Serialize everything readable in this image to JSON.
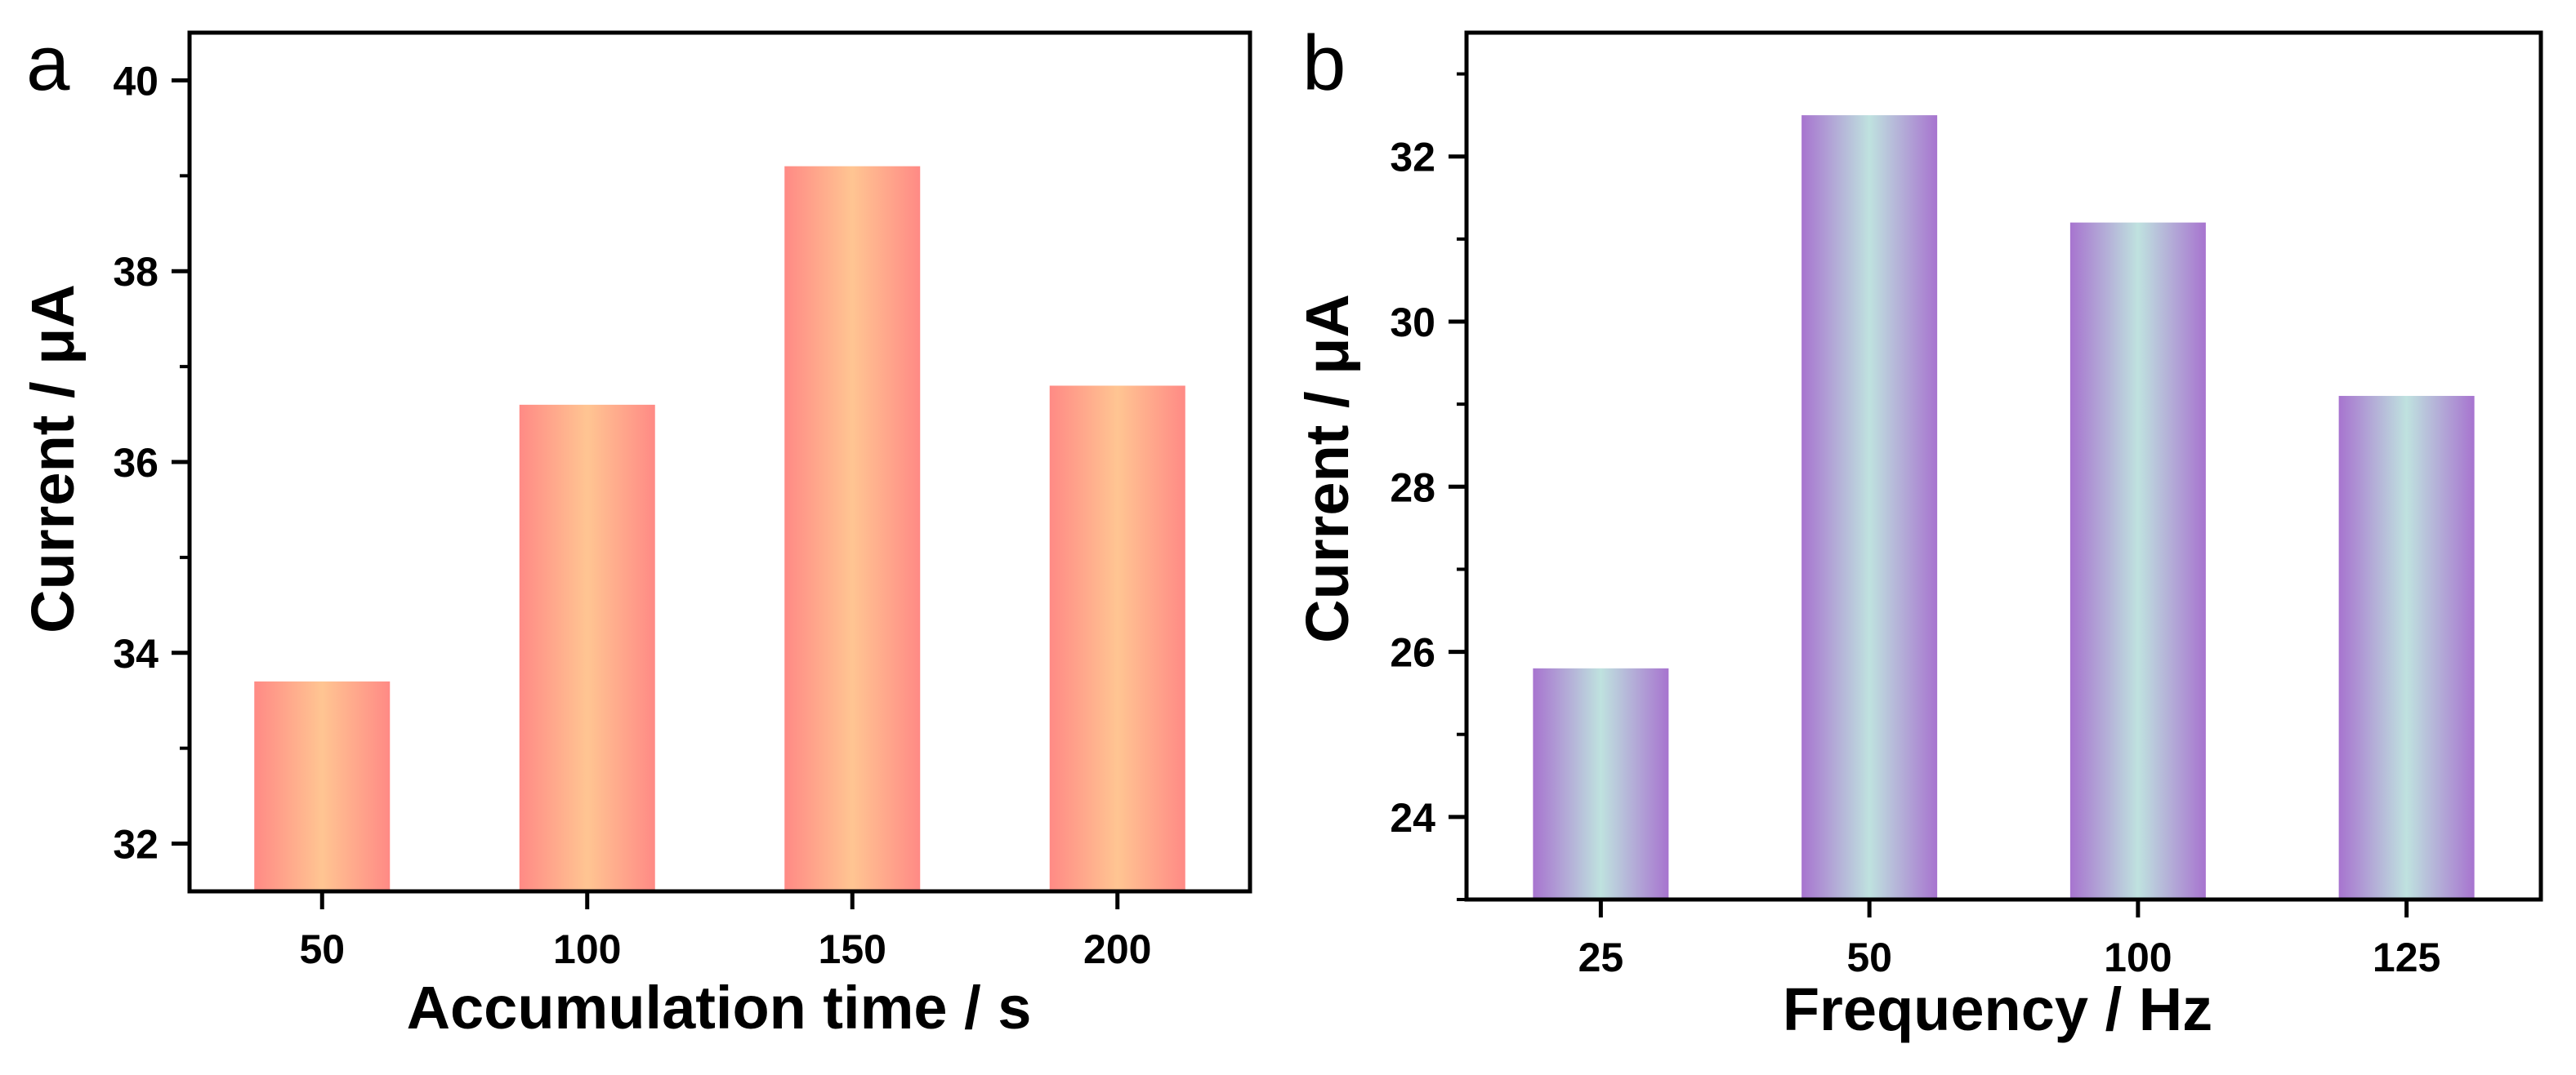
{
  "chart_data": [
    {
      "type": "bar",
      "panel_label": "a",
      "title": "",
      "xlabel": "Accumulation time / s",
      "ylabel": "Current / μA",
      "categories": [
        "50",
        "100",
        "150",
        "200"
      ],
      "values": [
        33.7,
        36.6,
        39.1,
        36.8
      ],
      "ylim": [
        31.5,
        40.5
      ],
      "yticks": [
        32,
        34,
        36,
        38,
        40
      ],
      "grid": false,
      "colors": {
        "edge": "#ff8a85",
        "center": "#ffc592"
      }
    },
    {
      "type": "bar",
      "panel_label": "b",
      "title": "",
      "xlabel": "Frequency / Hz",
      "ylabel": "Current / μA",
      "categories": [
        "25",
        "50",
        "100",
        "125"
      ],
      "values": [
        25.8,
        32.5,
        31.2,
        29.1
      ],
      "ylim": [
        23.0,
        33.5
      ],
      "yticks": [
        24,
        26,
        28,
        30,
        32
      ],
      "grid": false,
      "colors": {
        "edge": "#a774cf",
        "center": "#bfe2df"
      }
    }
  ]
}
